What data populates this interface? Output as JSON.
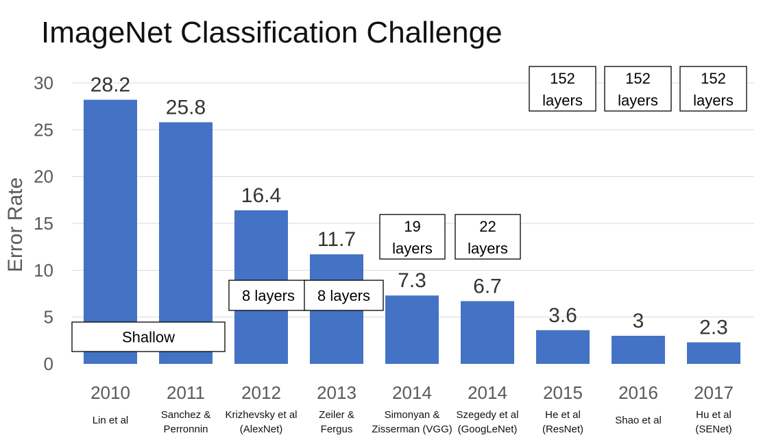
{
  "chart_data": {
    "type": "bar",
    "title": "ImageNet Classification Challenge",
    "ylabel": "Error Rate",
    "xlabel": "",
    "ylim": [
      0,
      30
    ],
    "yticks": [
      0,
      5,
      10,
      15,
      20,
      25,
      30
    ],
    "grid": true,
    "bar_color": "#4472c4",
    "categories": [
      {
        "year": "2010",
        "authors": [
          "Lin et al"
        ]
      },
      {
        "year": "2011",
        "authors": [
          "Sanchez &",
          "Perronnin"
        ]
      },
      {
        "year": "2012",
        "authors": [
          "Krizhevsky et al",
          "(AlexNet)"
        ]
      },
      {
        "year": "2013",
        "authors": [
          "Zeiler &",
          "Fergus"
        ]
      },
      {
        "year": "2014",
        "authors": [
          "Simonyan &",
          "Zisserman (VGG)"
        ]
      },
      {
        "year": "2014",
        "authors": [
          "Szegedy et al",
          "(GoogLeNet)"
        ]
      },
      {
        "year": "2015",
        "authors": [
          "He et al",
          "(ResNet)"
        ]
      },
      {
        "year": "2016",
        "authors": [
          "Shao et al"
        ]
      },
      {
        "year": "2017",
        "authors": [
          "Hu et al",
          "(SENet)"
        ]
      }
    ],
    "values": [
      28.2,
      25.8,
      16.4,
      11.7,
      7.3,
      6.7,
      3.6,
      3,
      2.3
    ],
    "value_labels": [
      "28.2",
      "25.8",
      "16.4",
      "11.7",
      "7.3",
      "6.7",
      "3.6",
      "3",
      "2.3"
    ],
    "annotations": [
      {
        "name": "shallow-box",
        "lines": [
          "Shallow"
        ],
        "bars": [
          0,
          1
        ],
        "style": "base"
      },
      {
        "name": "layers-box-2012",
        "lines": [
          "8 layers"
        ],
        "bars": [
          2
        ],
        "style": "mid"
      },
      {
        "name": "layers-box-2013",
        "lines": [
          "8 layers"
        ],
        "bars": [
          3
        ],
        "style": "mid"
      },
      {
        "name": "layers-box-2014-vgg",
        "lines": [
          "19",
          "layers"
        ],
        "bars": [
          4
        ],
        "style": "above"
      },
      {
        "name": "layers-box-2014-googlenet",
        "lines": [
          "22",
          "layers"
        ],
        "bars": [
          5
        ],
        "style": "above"
      },
      {
        "name": "layers-box-2015",
        "lines": [
          "152",
          "layers"
        ],
        "bars": [
          6
        ],
        "style": "top"
      },
      {
        "name": "layers-box-2016",
        "lines": [
          "152",
          "layers"
        ],
        "bars": [
          7
        ],
        "style": "top"
      },
      {
        "name": "layers-box-2017",
        "lines": [
          "152",
          "layers"
        ],
        "bars": [
          8
        ],
        "style": "top"
      }
    ]
  }
}
